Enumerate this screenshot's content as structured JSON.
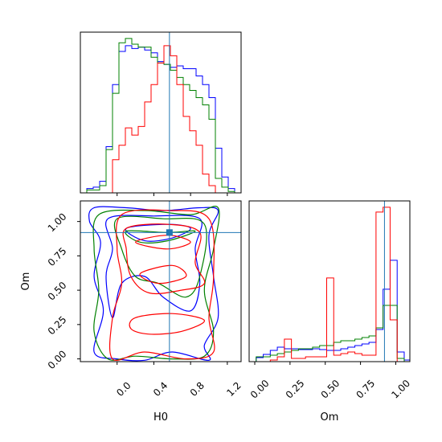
{
  "chart_data": {
    "type": "corner",
    "truth": {
      "H0": 0.57,
      "Om": 0.92
    },
    "colors": {
      "blue": "#0000ff",
      "green": "#008000",
      "red": "#ff0000",
      "truth": "#1f77b4"
    },
    "panels": [
      {
        "id": "hist-H0",
        "type": "histogram",
        "xlim": [
          -0.4,
          1.35
        ],
        "bin_edges": [
          -0.4,
          -0.33,
          -0.26,
          -0.19,
          -0.12,
          -0.05,
          0.02,
          0.09,
          0.16,
          0.23,
          0.3,
          0.37,
          0.44,
          0.51,
          0.58,
          0.65,
          0.72,
          0.79,
          0.86,
          0.93,
          1.0,
          1.07,
          1.14,
          1.21,
          1.28,
          1.35
        ],
        "series": [
          {
            "name": "blue",
            "counts": [
              0,
              0.3,
              0.4,
              0.8,
              3.2,
              7.5,
              9.8,
              10.2,
              10.0,
              10.1,
              9.9,
              9.7,
              9.1,
              8.9,
              8.7,
              8.8,
              8.6,
              8.6,
              8.1,
              7.5,
              6.6,
              3.1,
              1.1,
              0.3,
              0
            ]
          },
          {
            "name": "green",
            "counts": [
              0,
              0.2,
              0.2,
              0.5,
              3.0,
              6.9,
              10.4,
              10.7,
              10.3,
              10.1,
              10.1,
              9.4,
              9.0,
              8.9,
              8.5,
              8.0,
              7.5,
              7.1,
              6.6,
              6.1,
              5.1,
              1.0,
              0.4,
              0.1,
              0
            ]
          },
          {
            "name": "red",
            "counts": [
              0,
              0,
              0,
              0,
              0,
              2.3,
              3.3,
              4.5,
              4.0,
              4.6,
              6.3,
              7.5,
              9.0,
              10.2,
              9.5,
              7.5,
              5.3,
              4.3,
              3.3,
              1.3,
              0.5,
              0,
              0,
              0,
              0
            ]
          }
        ]
      },
      {
        "id": "contour-H0-Om",
        "type": "contour",
        "xlim": [
          -0.4,
          1.35
        ],
        "ylim": [
          -0.02,
          1.15
        ],
        "xlabel": "H0",
        "ylabel": "Om",
        "xticks": [
          0.0,
          0.4,
          0.8,
          1.2
        ],
        "xticklabels": [
          "0.0",
          "0.4",
          "0.8",
          "1.2"
        ],
        "yticks": [
          0.0,
          0.25,
          0.5,
          0.75,
          1.0
        ],
        "yticklabels": [
          "0.00",
          "0.25",
          "0.50",
          "0.75",
          "1.00"
        ],
        "series": [
          {
            "name": "blue",
            "levels": [
              [
                [
                  -0.25,
                  1.1
                ],
                [
                  0.1,
                  1.1
                ],
                [
                  0.5,
                  1.08
                ],
                [
                  0.9,
                  1.1
                ],
                [
                  1.1,
                  1.08
                ],
                [
                  1.0,
                  0.9
                ],
                [
                  1.05,
                  0.6
                ],
                [
                  1.1,
                  0.3
                ],
                [
                  0.95,
                  0.1
                ],
                [
                  1.0,
                  -0.01
                ],
                [
                  0.6,
                  0.05
                ],
                [
                  0.3,
                  -0.01
                ],
                [
                  0.0,
                  0.0
                ],
                [
                  -0.25,
                  0.05
                ],
                [
                  -0.15,
                  0.35
                ],
                [
                  -0.25,
                  0.6
                ],
                [
                  -0.18,
                  0.85
                ],
                [
                  -0.3,
                  1.0
                ]
              ],
              [
                [
                  -0.1,
                  1.02
                ],
                [
                  0.4,
                  1.04
                ],
                [
                  0.9,
                  1.02
                ],
                [
                  0.85,
                  0.8
                ],
                [
                  0.9,
                  0.55
                ],
                [
                  0.8,
                  0.35
                ],
                [
                  0.5,
                  0.45
                ],
                [
                  0.3,
                  0.6
                ],
                [
                  0.05,
                  0.55
                ],
                [
                  -0.05,
                  0.3
                ],
                [
                  -0.12,
                  0.6
                ],
                [
                  -0.05,
                  0.8
                ]
              ],
              [
                [
                  0.1,
                  0.95
                ],
                [
                  0.55,
                  0.98
                ],
                [
                  0.8,
                  0.95
                ],
                [
                  0.6,
                  0.88
                ],
                [
                  0.3,
                  0.86
                ]
              ]
            ]
          },
          {
            "name": "green",
            "levels": [
              [
                [
                  -0.2,
                  1.05
                ],
                [
                  0.3,
                  1.08
                ],
                [
                  0.8,
                  1.05
                ],
                [
                  1.1,
                  1.1
                ],
                [
                  1.05,
                  0.8
                ],
                [
                  0.95,
                  0.5
                ],
                [
                  1.05,
                  0.2
                ],
                [
                  0.95,
                  0.02
                ],
                [
                  0.6,
                  0.0
                ],
                [
                  0.2,
                  0.02
                ],
                [
                  -0.1,
                  0.0
                ],
                [
                  -0.25,
                  0.2
                ],
                [
                  -0.2,
                  0.5
                ],
                [
                  -0.25,
                  0.8
                ]
              ],
              [
                [
                  0.0,
                  1.02
                ],
                [
                  0.5,
                  1.02
                ],
                [
                  0.95,
                  0.98
                ],
                [
                  0.9,
                  0.6
                ],
                [
                  0.75,
                  0.45
                ],
                [
                  0.45,
                  0.55
                ],
                [
                  0.2,
                  0.6
                ],
                [
                  0.05,
                  0.8
                ]
              ],
              [
                [
                  0.1,
                  0.93
                ],
                [
                  0.55,
                  0.92
                ],
                [
                  0.85,
                  0.93
                ],
                [
                  0.55,
                  0.86
                ],
                [
                  0.25,
                  0.85
                ]
              ]
            ]
          },
          {
            "name": "red",
            "levels": [
              [
                [
                  0.05,
                  1.05
                ],
                [
                  0.55,
                  1.08
                ],
                [
                  1.0,
                  1.02
                ],
                [
                  1.05,
                  0.6
                ],
                [
                  1.0,
                  0.3
                ],
                [
                  1.05,
                  0.05
                ],
                [
                  0.75,
                  0.0
                ],
                [
                  0.3,
                  0.05
                ],
                [
                  -0.05,
                  0.0
                ],
                [
                  -0.05,
                  0.3
                ],
                [
                  0.05,
                  0.55
                ],
                [
                  0.0,
                  0.8
                ]
              ],
              [
                [
                  0.1,
                  0.95
                ],
                [
                  0.55,
                  0.98
                ],
                [
                  0.9,
                  0.92
                ],
                [
                  0.85,
                  0.7
                ],
                [
                  0.95,
                  0.55
                ],
                [
                  0.7,
                  0.5
                ],
                [
                  0.35,
                  0.48
                ],
                [
                  0.15,
                  0.6
                ],
                [
                  0.1,
                  0.8
                ]
              ],
              [
                [
                  0.2,
                  0.3
                ],
                [
                  0.6,
                  0.33
                ],
                [
                  0.95,
                  0.28
                ],
                [
                  0.7,
                  0.2
                ],
                [
                  0.35,
                  0.18
                ],
                [
                  0.15,
                  0.22
                ]
              ],
              [
                [
                  0.2,
                  0.85
                ],
                [
                  0.55,
                  0.9
                ],
                [
                  0.8,
                  0.85
                ],
                [
                  0.55,
                  0.8
                ]
              ],
              [
                [
                  0.25,
                  0.62
                ],
                [
                  0.6,
                  0.68
                ],
                [
                  0.75,
                  0.6
                ],
                [
                  0.45,
                  0.55
                ]
              ]
            ]
          }
        ]
      },
      {
        "id": "hist-Om",
        "type": "histogram",
        "xlim": [
          -0.04,
          1.1
        ],
        "xlabel": "Om",
        "xticks": [
          0.0,
          0.25,
          0.5,
          0.75,
          1.0
        ],
        "xticklabels": [
          "0.00",
          "0.25",
          "0.50",
          "0.75",
          "1.00"
        ],
        "bin_edges": [
          -0.04,
          0.01,
          0.06,
          0.11,
          0.16,
          0.21,
          0.26,
          0.31,
          0.36,
          0.41,
          0.46,
          0.51,
          0.56,
          0.61,
          0.66,
          0.71,
          0.76,
          0.81,
          0.86,
          0.91,
          0.96,
          1.01,
          1.06,
          1.1
        ],
        "series": [
          {
            "name": "blue",
            "counts": [
              0,
              0.25,
              0.45,
              0.7,
              0.9,
              0.8,
              0.8,
              0.75,
              0.75,
              0.8,
              0.75,
              0.7,
              0.7,
              0.8,
              0.9,
              1.0,
              1.1,
              1.2,
              2.0,
              4.5,
              6.3,
              0.6,
              0.1
            ]
          },
          {
            "name": "green",
            "counts": [
              0,
              0.3,
              0.3,
              0.4,
              0.5,
              0.6,
              0.7,
              0.8,
              0.8,
              0.9,
              1.0,
              1.0,
              1.2,
              1.3,
              1.3,
              1.4,
              1.5,
              1.6,
              2.1,
              3.5,
              3.5,
              0.2,
              0.0
            ]
          },
          {
            "name": "red",
            "counts": [
              0,
              0,
              0,
              0.1,
              0.3,
              1.4,
              0.2,
              0.2,
              0.3,
              0.3,
              0.3,
              5.2,
              0.4,
              0.5,
              0.6,
              0.5,
              0.4,
              0.4,
              9.3,
              9.6,
              2.6,
              0,
              0
            ]
          }
        ]
      }
    ]
  }
}
